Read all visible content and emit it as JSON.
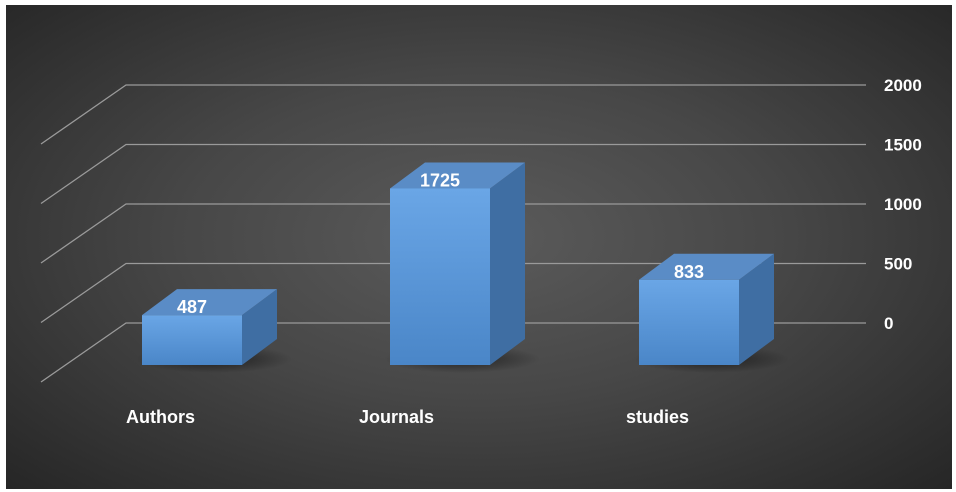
{
  "chart_data": {
    "type": "bar",
    "style": "3d-column",
    "categories": [
      "Authors",
      "Journals",
      "studies"
    ],
    "values": [
      487,
      1725,
      833
    ],
    "data_labels": [
      "487",
      "1725",
      "833"
    ],
    "ylim": [
      0,
      2000
    ],
    "yticks": [
      0,
      500,
      1000,
      1500,
      2000
    ],
    "ytick_labels": [
      "0",
      "500",
      "1000",
      "1500",
      "2000"
    ],
    "y_axis_side": "right",
    "grid": true,
    "legend": "none",
    "title": "",
    "xlabel": "",
    "ylabel": ""
  },
  "colors": {
    "background_center": "#5b5b5b",
    "background_edge": "#262626",
    "bar_front_top": "#6aa6e6",
    "bar_front_bottom": "#4a86c8",
    "bar_top": "#5a8cc6",
    "bar_side": "#3f6ea3",
    "gridline": "#9a9a9a",
    "text": "#ffffff"
  }
}
